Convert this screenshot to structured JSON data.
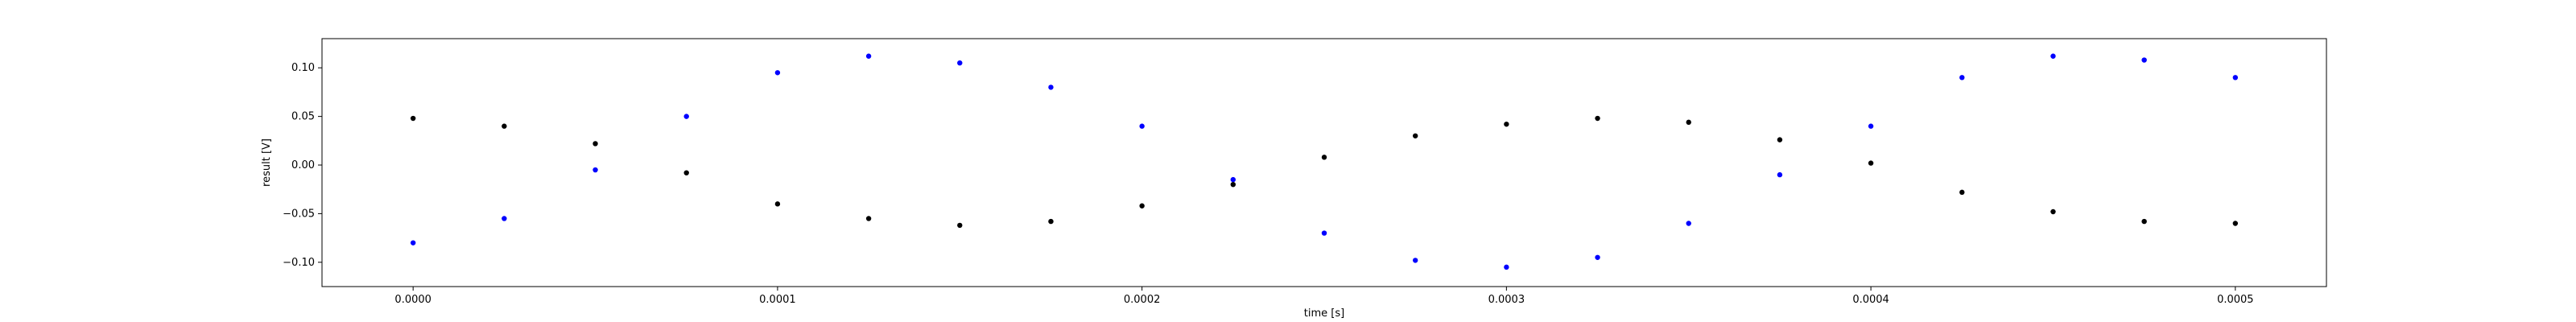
{
  "chart_data": {
    "type": "scatter",
    "title": "",
    "xlabel": "time [s]",
    "ylabel": "result [V]",
    "xlim": [
      -2.5e-05,
      0.000525
    ],
    "ylim": [
      -0.125,
      0.13
    ],
    "grid": false,
    "legend": "none",
    "x_ticks": [
      {
        "value": 0.0,
        "label": "0.0000"
      },
      {
        "value": 0.0001,
        "label": "0.0001"
      },
      {
        "value": 0.0002,
        "label": "0.0002"
      },
      {
        "value": 0.0003,
        "label": "0.0003"
      },
      {
        "value": 0.0004,
        "label": "0.0004"
      },
      {
        "value": 0.0005,
        "label": "0.0005"
      }
    ],
    "y_ticks": [
      {
        "value": -0.1,
        "label": "−0.10"
      },
      {
        "value": -0.05,
        "label": "−0.05"
      },
      {
        "value": 0.0,
        "label": "0.00"
      },
      {
        "value": 0.05,
        "label": "0.05"
      },
      {
        "value": 0.1,
        "label": "0.10"
      }
    ],
    "series": [
      {
        "color": "#0000ff",
        "x": [
          0.0,
          2.5e-05,
          5e-05,
          7.5e-05,
          0.0001,
          0.000125,
          0.00015,
          0.000175,
          0.0002,
          0.000225,
          0.00025,
          0.000275,
          0.0003,
          0.000325,
          0.00035,
          0.000375,
          0.0004,
          0.000425,
          0.00045,
          0.000475,
          0.0005
        ],
        "y": [
          -0.08,
          -0.055,
          -0.005,
          0.05,
          0.095,
          0.112,
          0.105,
          0.08,
          0.04,
          -0.015,
          -0.07,
          -0.098,
          -0.105,
          -0.095,
          -0.06,
          -0.01,
          0.04,
          0.09,
          0.112,
          0.108,
          0.09
        ]
      },
      {
        "color": "#000000",
        "x": [
          0.0,
          2.5e-05,
          5e-05,
          7.5e-05,
          0.0001,
          0.000125,
          0.00015,
          0.000175,
          0.0002,
          0.000225,
          0.00025,
          0.000275,
          0.0003,
          0.000325,
          0.00035,
          0.000375,
          0.0004,
          0.000425,
          0.00045,
          0.000475,
          0.0005
        ],
        "y": [
          0.048,
          0.04,
          0.022,
          -0.008,
          -0.04,
          -0.055,
          -0.062,
          -0.058,
          -0.042,
          -0.02,
          0.008,
          0.03,
          0.042,
          0.048,
          0.044,
          0.026,
          0.002,
          -0.028,
          -0.048,
          -0.058,
          -0.06
        ]
      }
    ]
  }
}
